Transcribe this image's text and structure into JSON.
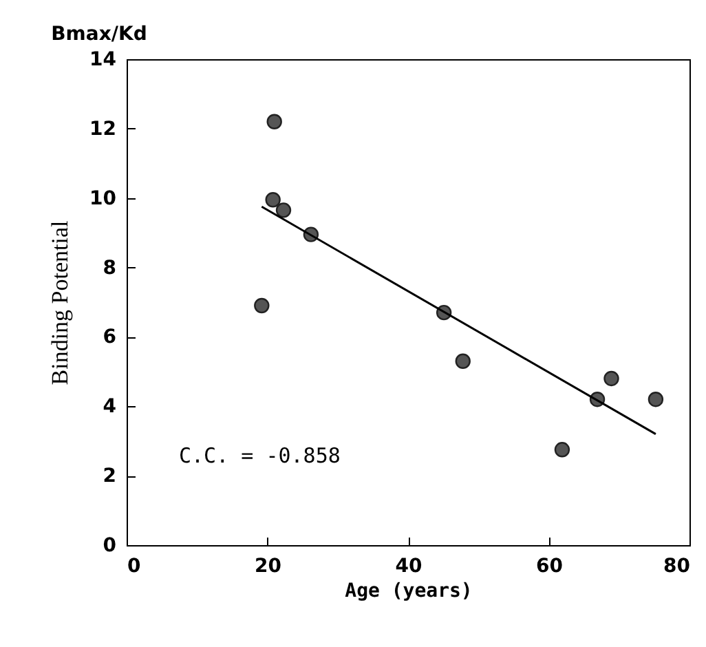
{
  "chart_data": {
    "type": "scatter",
    "xlabel": "Age (years)",
    "ylabel": "Binding Potential",
    "annotations": [
      "Bmax/Kd",
      "C.C. = -0.858"
    ],
    "series": [
      {
        "color": "#555555",
        "marker": "circle",
        "x": [
          21.0,
          19.2,
          20.8,
          22.3,
          26.2,
          45.1,
          47.8,
          61.9,
          66.9,
          68.9,
          75.2
        ],
        "values": [
          12.2,
          6.9,
          9.95,
          9.65,
          8.95,
          6.7,
          5.3,
          2.75,
          4.2,
          4.8,
          4.2
        ]
      },
      {
        "type": "line",
        "color": "#000000",
        "marker": "none",
        "x": [
          19.2,
          75.2
        ],
        "values": [
          9.75,
          3.2
        ]
      }
    ],
    "xlim": [
      0,
      80
    ],
    "xticks": [
      0,
      20,
      40,
      60,
      80
    ],
    "ylim": [
      0,
      14
    ],
    "yticks": [
      0,
      2,
      4,
      6,
      8,
      10,
      12,
      14
    ],
    "grid": false
  }
}
